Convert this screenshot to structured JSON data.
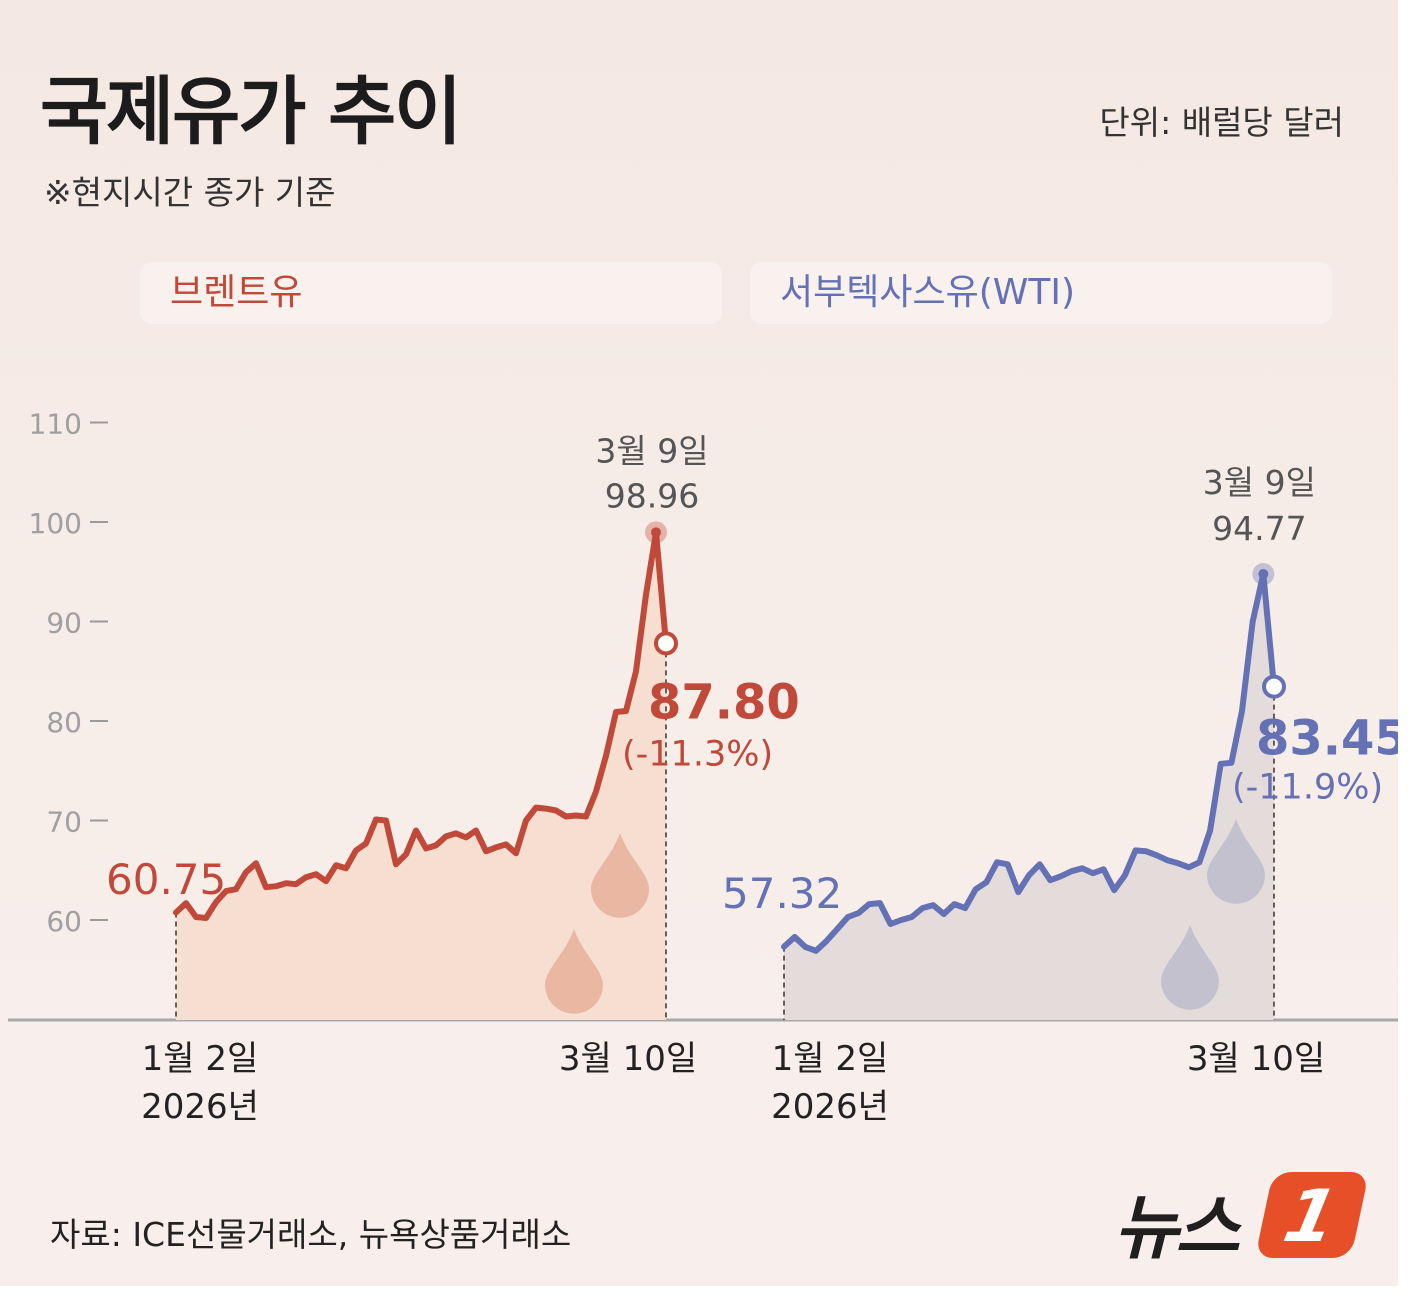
{
  "header": {
    "title": "국제유가 추이",
    "subtitle": "※현지시간 종가 기준",
    "unit": "단위: 배럴당 달러"
  },
  "footer": {
    "source": "자료:  ICE선물거래소, 뉴욕상품거래소",
    "logo_text": "뉴스",
    "logo_badge": "1"
  },
  "colors": {
    "brent_line": "#c0493a",
    "brent_fill": "#f6dfd0",
    "brent_drop": "#e5a994",
    "wti_line": "#6471b5",
    "wti_fill": "#e3dcdb",
    "wti_drop": "#b8b8ca",
    "axis": "#9a9a9a",
    "baseline": "#a9a9a9"
  },
  "icons": [
    "oil-drop-icon",
    "oil-drop-icon",
    "oil-drop-icon",
    "oil-drop-icon"
  ],
  "chart_data": [
    {
      "type": "line",
      "name": "브렌트유",
      "y_ticks": [
        60,
        70,
        80,
        90,
        100,
        110
      ],
      "ylim": [
        50,
        110
      ],
      "grid": false,
      "series": [
        {
          "name": "브렌트유",
          "values": [
            60.75,
            61.7,
            60.3,
            60.2,
            61.8,
            62.9,
            63.1,
            64.8,
            65.7,
            63.3,
            63.4,
            63.7,
            63.6,
            64.3,
            64.6,
            63.9,
            65.5,
            65.2,
            67.0,
            67.7,
            70.1,
            70.0,
            65.6,
            66.6,
            69.0,
            67.2,
            67.5,
            68.4,
            68.7,
            68.3,
            69.0,
            66.9,
            67.3,
            67.6,
            66.7,
            70.0,
            71.3,
            71.2,
            71.0,
            70.4,
            70.5,
            70.4,
            72.9,
            76.5,
            80.9,
            81.0,
            85.0,
            92.7,
            98.96,
            87.8
          ]
        }
      ],
      "x_labels": [
        {
          "line1": "1월 2일",
          "line2": "2026년"
        },
        {
          "line1": "3월 10일",
          "line2": ""
        }
      ],
      "annotations": {
        "start_value": "60.75",
        "peak_date": "3월 9일",
        "peak_value": "98.96",
        "last_value": "87.80",
        "last_change": "(-11.3%)"
      }
    },
    {
      "type": "line",
      "name": "서부텍사스유(WTI)",
      "ylim": [
        50,
        110
      ],
      "grid": false,
      "series": [
        {
          "name": "서부텍사스유(WTI)",
          "values": [
            57.32,
            58.3,
            57.3,
            56.9,
            57.9,
            59.1,
            60.3,
            60.7,
            61.6,
            61.7,
            59.6,
            60.0,
            60.3,
            61.2,
            61.5,
            60.6,
            61.6,
            61.2,
            63.1,
            63.8,
            65.8,
            65.6,
            62.8,
            64.5,
            65.6,
            64.0,
            64.4,
            64.9,
            65.2,
            64.7,
            65.1,
            63.0,
            64.5,
            67.0,
            66.9,
            66.5,
            66.0,
            65.7,
            65.3,
            65.8,
            69.0,
            75.7,
            75.8,
            81.0,
            90.0,
            94.77,
            83.45
          ]
        }
      ],
      "x_labels": [
        {
          "line1": "1월 2일",
          "line2": "2026년"
        },
        {
          "line1": "3월 10일",
          "line2": ""
        }
      ],
      "annotations": {
        "start_value": "57.32",
        "peak_date": "3월 9일",
        "peak_value": "94.77",
        "last_value": "83.45",
        "last_change": "(-11.9%)"
      }
    }
  ]
}
